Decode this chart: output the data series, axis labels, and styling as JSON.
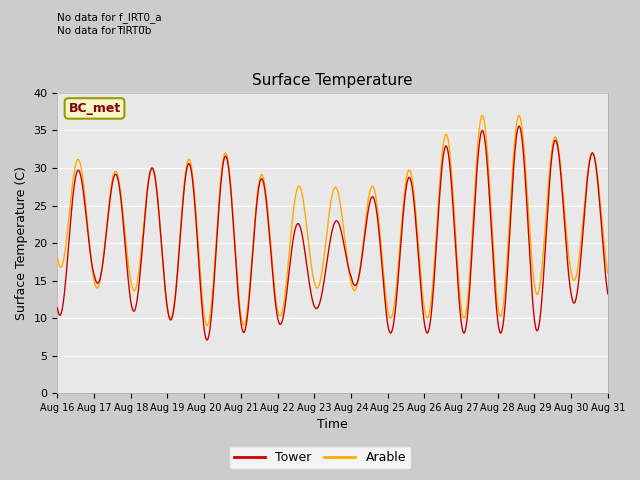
{
  "title": "Surface Temperature",
  "xlabel": "Time",
  "ylabel": "Surface Temperature (C)",
  "ylim": [
    0,
    40
  ],
  "yticks": [
    0,
    5,
    10,
    15,
    20,
    25,
    30,
    35,
    40
  ],
  "x_labels": [
    "Aug 16",
    "Aug 17",
    "Aug 18",
    "Aug 19",
    "Aug 20",
    "Aug 21",
    "Aug 22",
    "Aug 23",
    "Aug 24",
    "Aug 25",
    "Aug 26",
    "Aug 27",
    "Aug 28",
    "Aug 29",
    "Aug 30",
    "Aug 31"
  ],
  "no_data_text": [
    "No data for f_IRT0_a",
    "No data for f̅IRT0̅b"
  ],
  "bc_met_label": "BC_met",
  "legend_labels": [
    "Tower",
    "Arable"
  ],
  "tower_color": "#cc0000",
  "arable_color": "#ffaa00",
  "plot_bg_color": "#e8e8e8",
  "fig_bg_color": "#cccccc",
  "grid_color": "#ffffff",
  "bc_met_bg": "#f5f5c8",
  "bc_met_border": "#999900",
  "bc_met_text_color": "#880000",
  "daily_max_tower": [
    32,
    28,
    30,
    30,
    31,
    32,
    26,
    20,
    25,
    27,
    30,
    35,
    35,
    36,
    32
  ],
  "daily_min_tower": [
    10,
    15,
    11,
    10,
    7,
    8,
    9,
    11,
    15,
    8,
    8,
    8,
    8,
    8,
    12
  ],
  "daily_max_arable": [
    34,
    29,
    30,
    30,
    32,
    32,
    27,
    28,
    27,
    28,
    31,
    37,
    37,
    37,
    32
  ],
  "daily_min_arable": [
    17,
    14,
    14,
    10,
    9,
    9,
    10,
    14,
    14,
    10,
    10,
    10,
    10,
    13,
    15
  ]
}
